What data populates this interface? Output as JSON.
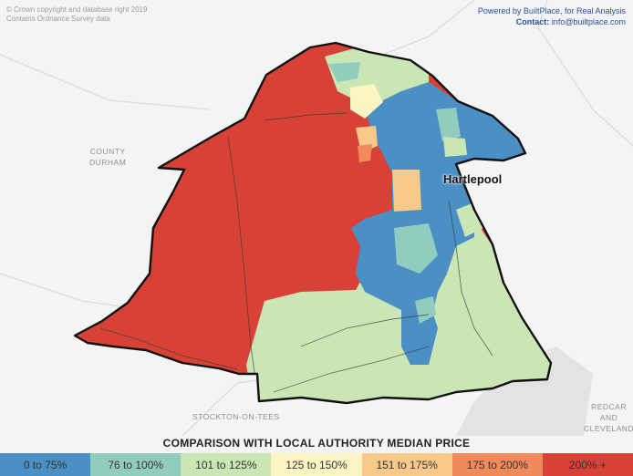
{
  "attribution": {
    "line1": "© Crown copyright and database right 2019",
    "line2": "Contains Ordnance Survey data"
  },
  "credit": {
    "powered": "Powered by BuiltPlace, for Real Analysis",
    "contact_label": "Contact:",
    "contact_value": "info@builtplace.com"
  },
  "places": {
    "county": "COUNTY",
    "durham": "DURHAM",
    "stockton": "STOCKTON-ON-TEES",
    "redcar": "REDCAR AND",
    "cleveland": "CLEVELAND",
    "hartlepool": "Hartlepool"
  },
  "legend": {
    "title": "COMPARISON WITH LOCAL AUTHORITY MEDIAN PRICE",
    "items": [
      {
        "label": "0 to 75%",
        "color": "#4a90c4"
      },
      {
        "label": "76 to 100%",
        "color": "#90cdbf"
      },
      {
        "label": "101 to 125%",
        "color": "#c9e6b4"
      },
      {
        "label": "125 to 150%",
        "color": "#fbf5c3"
      },
      {
        "label": "151 to 175%",
        "color": "#f9c98a"
      },
      {
        "label": "175 to 200%",
        "color": "#f08a5a"
      },
      {
        "label": "200% +",
        "color": "#d84236"
      }
    ]
  }
}
